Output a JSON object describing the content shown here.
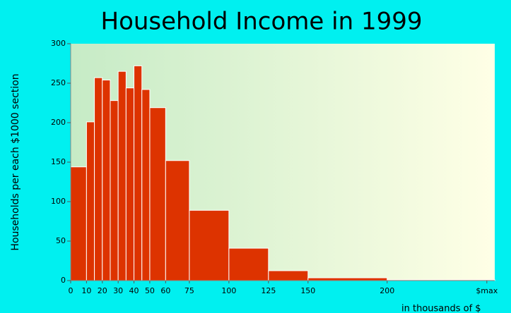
{
  "chart_data": {
    "type": "histogram",
    "title": "Household Income in 1999",
    "y_label": "Households per each $1000 section",
    "x_label": "in thousands of $",
    "bins": [
      0,
      10,
      15,
      20,
      25,
      30,
      35,
      40,
      45,
      50,
      60,
      75,
      100,
      125,
      150,
      200,
      268
    ],
    "values": [
      144,
      201,
      257,
      254,
      228,
      265,
      244,
      272,
      242,
      219,
      152,
      89,
      41,
      12.5,
      3.5,
      1
    ],
    "color": "#dd3300",
    "xlim": [
      0,
      268
    ],
    "ylim": [
      0,
      300
    ],
    "xticks": [
      0,
      10,
      20,
      30,
      40,
      50,
      60,
      75,
      100,
      125,
      150,
      200,
      {
        "value": 263,
        "label": "$max"
      }
    ],
    "yticks": [
      0,
      50,
      100,
      150,
      200,
      250,
      300
    ]
  }
}
